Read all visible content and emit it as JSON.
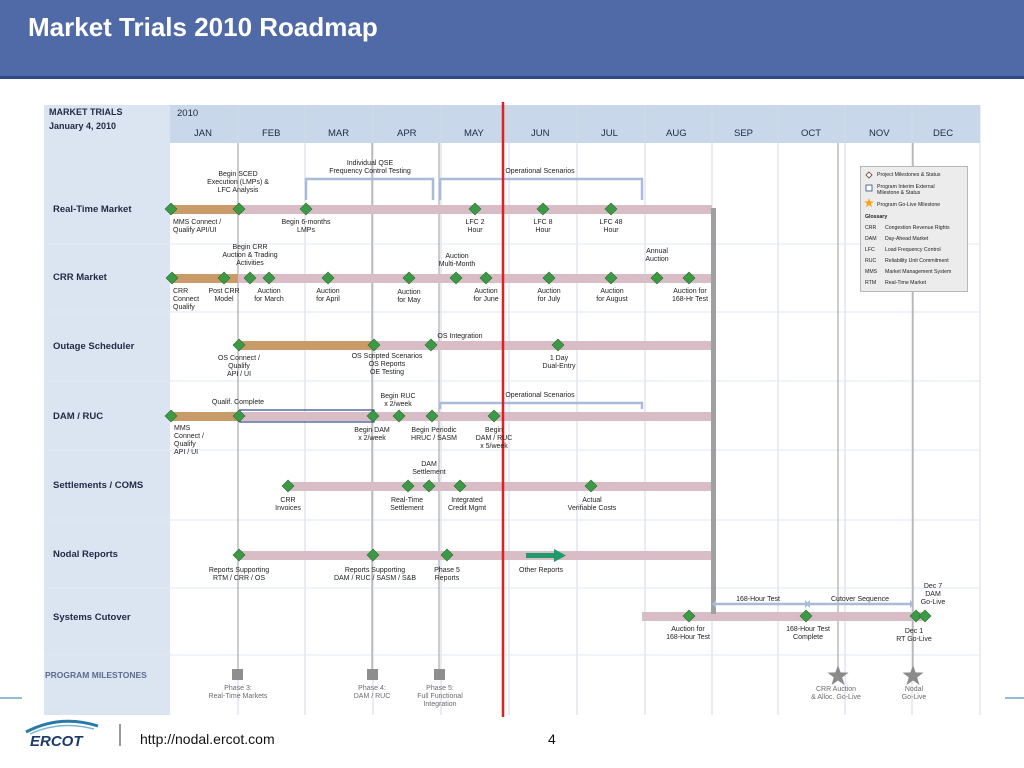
{
  "slide": {
    "title": "Market Trials 2010 Roadmap",
    "footer_url": "http://nodal.ercot.com",
    "page_number": "4",
    "logo_text": "ERCOT"
  },
  "header": {
    "line1": "MARKET TRIALS",
    "line2": "January 4, 2010",
    "year": "2010",
    "months": [
      "JAN",
      "FEB",
      "MAR",
      "APR",
      "MAY",
      "JUN",
      "JUL",
      "AUG",
      "SEP",
      "OCT",
      "NOV",
      "DEC"
    ]
  },
  "rows": {
    "real_time": "Real-Time Market",
    "crr": "CRR Market",
    "outage": "Outage Scheduler",
    "dam": "DAM / RUC",
    "settlements": "Settlements / COMS",
    "nodal": "Nodal Reports",
    "cutover": "Systems Cutover",
    "milestones": "PROGRAM MILESTONES"
  },
  "rt": {
    "a1": "Begin SCED",
    "a2": "Execution (LMPs) &",
    "a3": "LFC Analysis",
    "b1": "Individual QSE",
    "b2": "Frequency Control Testing",
    "c": "Operational Scenarios",
    "d1": "MMS Connect /",
    "d2": "Qualify API/UI",
    "e1": "Begin 6-months",
    "e2": "LMPs",
    "f1": "LFC 2",
    "f2": "Hour",
    "g1": "LFC 8",
    "g2": "Hour",
    "h1": "LFC 48",
    "h2": "Hour"
  },
  "crr": {
    "a1": "Begin CRR",
    "a2": "Auction & Trading",
    "a3": "Activities",
    "b1": "Auction",
    "b2": "Multi-Month",
    "c1": "Annual",
    "c2": "Auction",
    "d1": "CRR",
    "d2": "Connect",
    "d3": "Qualify",
    "e1": "Post CRR",
    "e2": "Model",
    "f1": "Auction",
    "f2": "for March",
    "g1": "Auction",
    "g2": "for April",
    "h1": "Auction",
    "h2": "for May",
    "i1": "Auction",
    "i2": "for June",
    "j1": "Auction",
    "j2": "for July",
    "k1": "Auction",
    "k2": "for August",
    "l1": "Auction for",
    "l2": "168-Hr Test"
  },
  "os": {
    "a": "OS Integration",
    "b1": "OS Connect /",
    "b2": "Qualify",
    "b3": "API / UI",
    "c1": "OS Scripted Scenarios",
    "c2": "OS Reports",
    "c3": "OE Testing",
    "d1": "1 Day",
    "d2": "Dual-Entry"
  },
  "dam": {
    "a": "Qualif. Complete",
    "b1": "Begin RUC",
    "b2": "x 2/week",
    "c": "Operational Scenarios",
    "d1": "MMS",
    "d2": "Connect /",
    "d3": "Qualify",
    "d4": "API / UI",
    "e1": "Begin DAM",
    "e2": "x 2/week",
    "f1": "Begin Periodic",
    "f2": "HRUC / SASM",
    "g1": "Begin",
    "g2": "DAM / RUC",
    "g3": "x 5/week"
  },
  "set": {
    "a1": "DAM",
    "a2": "Settlement",
    "b1": "CRR",
    "b2": "Invoices",
    "c1": "Real-Time",
    "c2": "Settlement",
    "d1": "Integrated",
    "d2": "Credit Mgmt",
    "e1": "Actual",
    "e2": "Verifiable Costs"
  },
  "nr": {
    "a1": "Reports Supporting",
    "a2": "RTM / CRR / OS",
    "b1": "Reports Supporting",
    "b2": "DAM / RUC / SASM / S&B",
    "c1": "Phase 5",
    "c2": "Reports",
    "d": "Other Reports"
  },
  "sc": {
    "a": "168-Hour Test",
    "b": "Cutover Sequence",
    "c1": "Dec 7",
    "c2": "DAM",
    "c3": "Go-Live",
    "d1": "Auction for",
    "d2": "168-Hour Test",
    "e1": "168-Hour Test",
    "e2": "Complete",
    "f1": "Dec 1",
    "f2": "RT Go-Live"
  },
  "pm": {
    "a1": "Phase 3:",
    "a2": "Real-Time Markets",
    "b1": "Phase 4:",
    "b2": "DAM / RUC",
    "c1": "Phase 5:",
    "c2": "Full Functional",
    "c3": "Integration",
    "d1": "CRR  Auction",
    "d2": "& Alloc. Go-Live",
    "e1": "Nodal",
    "e2": "Go-Live"
  },
  "legend": {
    "i1": "Project Milestones & Status",
    "i2a": "Program Interim External",
    "i2b": "Milestone & Status",
    "i3": "Program Go-Live Milestone",
    "glossary": "Glossary",
    "terms": [
      {
        "abbr": "CRR",
        "def": "Congestion Revenue Rights"
      },
      {
        "abbr": "DAM",
        "def": "Day-Ahead Market"
      },
      {
        "abbr": "LFC",
        "def": "Load Frequency Control"
      },
      {
        "abbr": "RUC",
        "def": "Reliability Unit Commitment"
      },
      {
        "abbr": "MMS",
        "def": "Market Management System"
      },
      {
        "abbr": "RTM",
        "def": "Real-Time Market"
      }
    ]
  },
  "colors": {
    "title_bar": "#4f6aa6",
    "header_band": "#c9d7ea",
    "task_bar": "#d8bcc6",
    "completed_bar": "#c89b68",
    "milestone": "#3c9a46",
    "today_line": "#e02020",
    "bracket": "#a9bbd6",
    "arrow": "#1f9a6a"
  }
}
